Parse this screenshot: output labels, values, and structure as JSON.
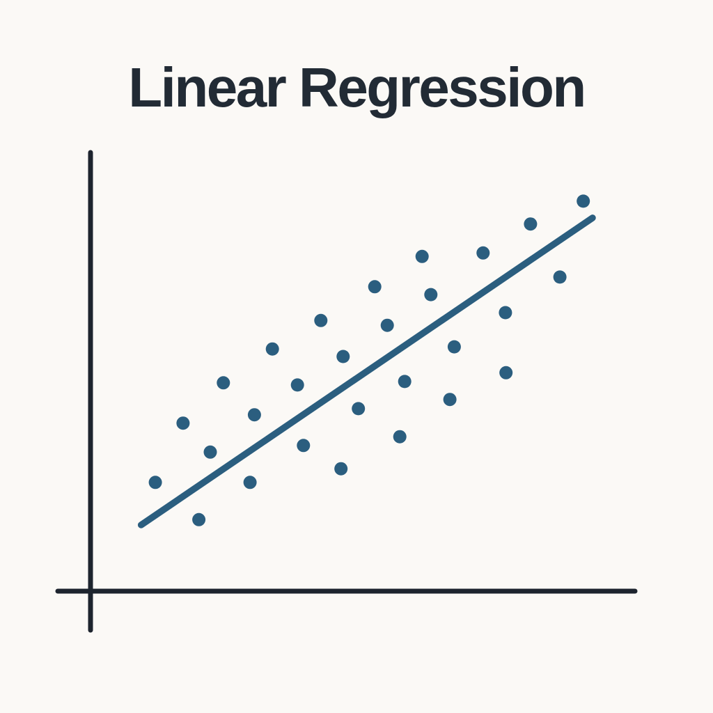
{
  "page": {
    "title": "Linear Regression"
  },
  "colors": {
    "background": "#FBF9F6",
    "title": "#222B35",
    "axis": "#1D242E",
    "accent": "#2B5E7F"
  },
  "chart_data": {
    "type": "scatter",
    "title": "Linear Regression",
    "xlabel": "",
    "ylabel": "",
    "x_range": [
      0,
      10
    ],
    "y_range": [
      0,
      10
    ],
    "grid": false,
    "legend": "none",
    "tick_labels": "none",
    "points": [
      [
        1.19,
        2.48
      ],
      [
        1.7,
        3.83
      ],
      [
        1.99,
        1.63
      ],
      [
        2.2,
        3.17
      ],
      [
        2.44,
        4.75
      ],
      [
        2.93,
        2.48
      ],
      [
        3.01,
        4.02
      ],
      [
        3.34,
        5.52
      ],
      [
        3.8,
        4.7
      ],
      [
        3.91,
        3.32
      ],
      [
        4.23,
        6.17
      ],
      [
        4.6,
        2.79
      ],
      [
        4.64,
        5.35
      ],
      [
        4.92,
        4.16
      ],
      [
        5.22,
        6.94
      ],
      [
        5.45,
        6.06
      ],
      [
        5.68,
        3.52
      ],
      [
        5.77,
        4.78
      ],
      [
        6.09,
        7.63
      ],
      [
        6.25,
        6.76
      ],
      [
        6.6,
        4.37
      ],
      [
        6.68,
        5.57
      ],
      [
        7.21,
        7.71
      ],
      [
        7.62,
        6.35
      ],
      [
        7.63,
        4.98
      ],
      [
        8.08,
        8.37
      ],
      [
        8.62,
        7.16
      ],
      [
        9.05,
        8.89
      ]
    ],
    "regression_line": {
      "x1": 0.93,
      "y1": 1.51,
      "x2": 9.22,
      "y2": 8.51
    }
  }
}
